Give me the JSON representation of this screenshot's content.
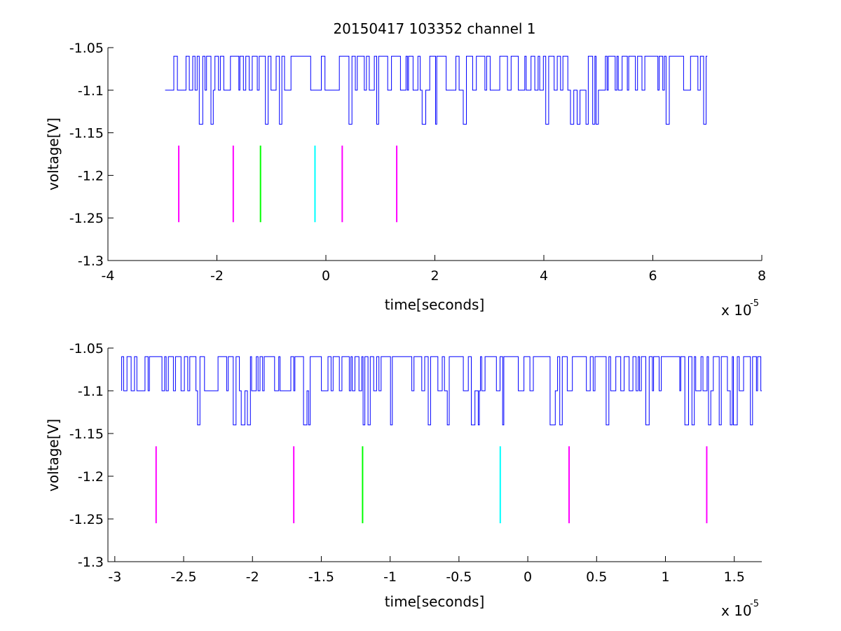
{
  "chart_data": [
    {
      "type": "line",
      "title": "20150417 103352 channel 1",
      "xlabel": "time[seconds]",
      "ylabel": "voltage[V]",
      "x_multiplier": "x 10",
      "x_multiplier_exponent": "-5",
      "xlim": [
        -4,
        8
      ],
      "ylim": [
        -1.3,
        -1.05
      ],
      "xticks": [
        -4,
        -2,
        0,
        2,
        4,
        6,
        8
      ],
      "xtick_labels": [
        "-4",
        "-2",
        "0",
        "2",
        "4",
        "6",
        "8"
      ],
      "yticks": [
        -1.05,
        -1.1,
        -1.15,
        -1.2,
        -1.25,
        -1.3
      ],
      "ytick_labels": [
        "-1.05",
        "-1.1",
        "-1.15",
        "-1.2",
        "-1.25",
        "-1.3"
      ],
      "grid": false,
      "series": [
        {
          "color": "#0000ff",
          "x_range": [
            -2.95,
            7.0
          ],
          "levels": [
            -1.06,
            -1.1,
            -1.14
          ],
          "baseline": -1.1
        }
      ],
      "markers": [
        {
          "x": -2.7,
          "color": "#ff00ff",
          "y_range": [
            -1.255,
            -1.165
          ]
        },
        {
          "x": -1.7,
          "color": "#ff00ff",
          "y_range": [
            -1.255,
            -1.165
          ]
        },
        {
          "x": -1.2,
          "color": "#00ff00",
          "y_range": [
            -1.255,
            -1.165
          ]
        },
        {
          "x": -0.2,
          "color": "#00ffff",
          "y_range": [
            -1.255,
            -1.165
          ]
        },
        {
          "x": 0.3,
          "color": "#ff00ff",
          "y_range": [
            -1.255,
            -1.165
          ]
        },
        {
          "x": 1.3,
          "color": "#ff00ff",
          "y_range": [
            -1.255,
            -1.165
          ]
        }
      ]
    },
    {
      "type": "line",
      "title": "",
      "xlabel": "time[seconds]",
      "ylabel": "voltage[V]",
      "x_multiplier": "x 10",
      "x_multiplier_exponent": "-5",
      "xlim": [
        -3.05,
        1.7
      ],
      "ylim": [
        -1.3,
        -1.05
      ],
      "xticks": [
        -3,
        -2.5,
        -2,
        -1.5,
        -1,
        -0.5,
        0,
        0.5,
        1,
        1.5
      ],
      "xtick_labels": [
        "-3",
        "-2.5",
        "-2",
        "-1.5",
        "-1",
        "-0.5",
        "0",
        "0.5",
        "1",
        "1.5"
      ],
      "yticks": [
        -1.05,
        -1.1,
        -1.15,
        -1.2,
        -1.25,
        -1.3
      ],
      "ytick_labels": [
        "-1.05",
        "-1.1",
        "-1.15",
        "-1.2",
        "-1.25",
        "-1.3"
      ],
      "grid": false,
      "series": [
        {
          "color": "#0000ff",
          "x_range": [
            -2.95,
            1.7
          ],
          "levels": [
            -1.06,
            -1.1,
            -1.14
          ],
          "baseline": -1.1
        }
      ],
      "markers": [
        {
          "x": -2.7,
          "color": "#ff00ff",
          "y_range": [
            -1.255,
            -1.165
          ]
        },
        {
          "x": -1.7,
          "color": "#ff00ff",
          "y_range": [
            -1.255,
            -1.165
          ]
        },
        {
          "x": -1.2,
          "color": "#00ff00",
          "y_range": [
            -1.255,
            -1.165
          ]
        },
        {
          "x": -0.2,
          "color": "#00ffff",
          "y_range": [
            -1.255,
            -1.165
          ]
        },
        {
          "x": 0.3,
          "color": "#ff00ff",
          "y_range": [
            -1.255,
            -1.165
          ]
        },
        {
          "x": 1.3,
          "color": "#ff00ff",
          "y_range": [
            -1.255,
            -1.165
          ]
        }
      ]
    }
  ]
}
